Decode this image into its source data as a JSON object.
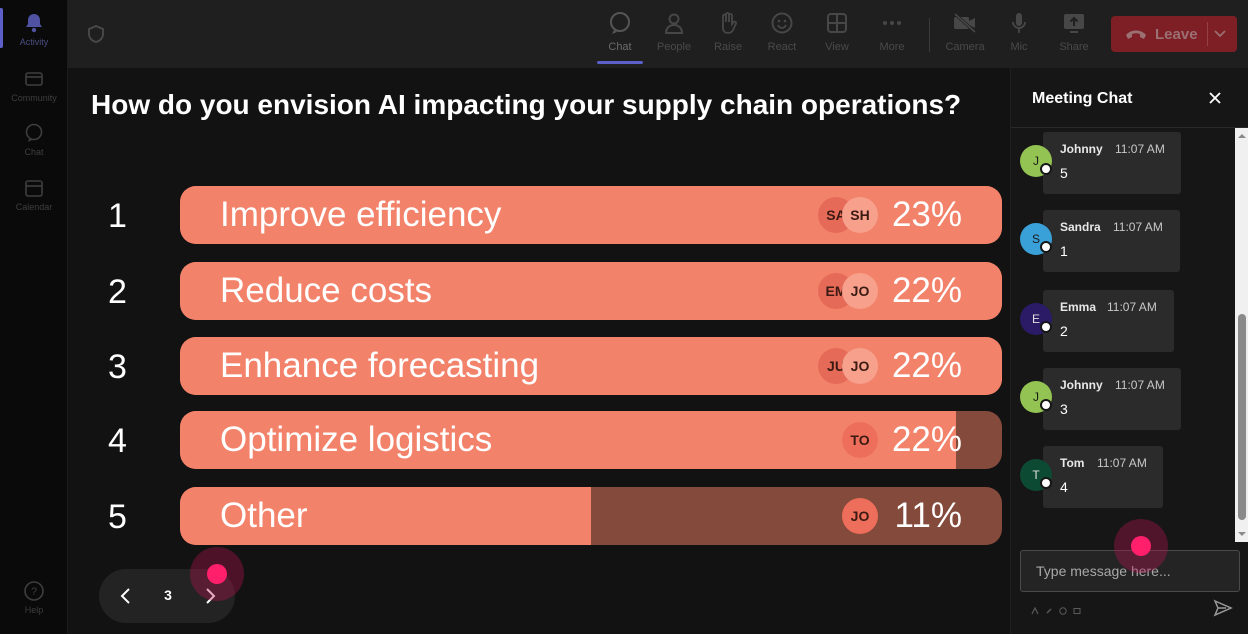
{
  "rail": {
    "items": [
      {
        "label": "Activity",
        "icon": "bell-icon",
        "active": true
      },
      {
        "label": "Community",
        "icon": "community-icon"
      },
      {
        "label": "Chat",
        "icon": "chat-icon"
      },
      {
        "label": "Calendar",
        "icon": "calendar-icon"
      },
      {
        "label": "Help",
        "icon": "help-icon"
      }
    ]
  },
  "toolbar": {
    "chat_label": "Chat",
    "people_label": "People",
    "raise_label": "Raise",
    "react_label": "React",
    "view_label": "View",
    "more_label": "More",
    "camera_label": "Camera",
    "mic_label": "Mic",
    "share_label": "Share",
    "leave_label": "Leave",
    "leave_color": "#c4314b"
  },
  "poll": {
    "question": "How do you envision AI impacting your supply chain operations?",
    "options": [
      {
        "number": "1",
        "label": "Improve efficiency",
        "percent": "23%",
        "fill": 1.0,
        "avatars": [
          "SA",
          "SH"
        ]
      },
      {
        "number": "2",
        "label": "Reduce costs",
        "percent": "22%",
        "fill": 1.0,
        "avatars": [
          "EM",
          "JO"
        ]
      },
      {
        "number": "3",
        "label": "Enhance forecasting",
        "percent": "22%",
        "fill": 1.0,
        "avatars": [
          "JU",
          "JO"
        ]
      },
      {
        "number": "4",
        "label": "Optimize logistics",
        "percent": "22%",
        "fill": 0.944,
        "avatars": [
          "TO"
        ]
      },
      {
        "number": "5",
        "label": "Other",
        "percent": "11%",
        "fill": 0.5,
        "avatars": [
          "JO"
        ]
      }
    ],
    "bar_color": "#f3826a",
    "track_color": "#844a3b",
    "pager": {
      "page": "3"
    }
  },
  "chat": {
    "title": "Meeting Chat",
    "messages": [
      {
        "initial": "J",
        "name": "Johnny",
        "time": "11:07 AM",
        "text": "5",
        "color": "#92c353"
      },
      {
        "initial": "S",
        "name": "Sandra",
        "time": "11:07 AM",
        "text": "1",
        "color": "#3aa0d8"
      },
      {
        "initial": "E",
        "name": "Emma",
        "time": "11:07 AM",
        "text": "2",
        "color": "#2b1b66"
      },
      {
        "initial": "J",
        "name": "Johnny",
        "time": "11:07 AM",
        "text": "3",
        "color": "#92c353"
      },
      {
        "initial": "T",
        "name": "Tom",
        "time": "11:07 AM",
        "text": "4",
        "color": "#0d4a34"
      }
    ],
    "compose_placeholder": "Type message here..."
  }
}
